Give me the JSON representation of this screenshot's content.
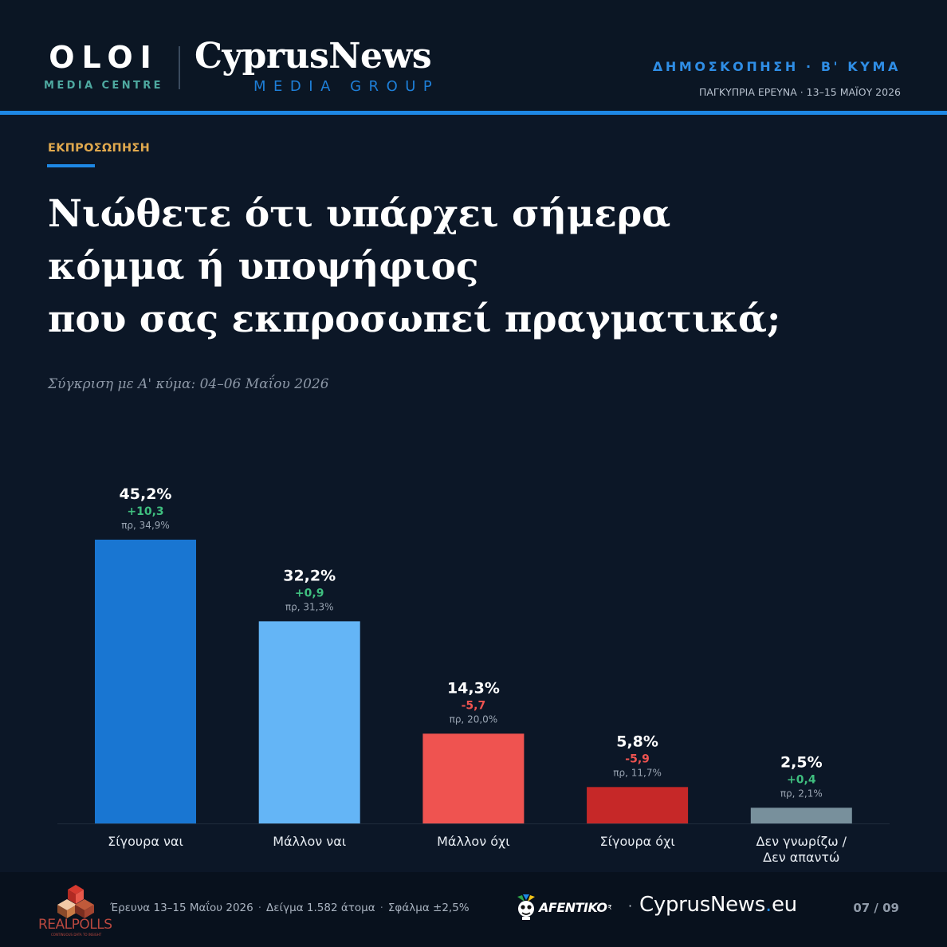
{
  "header": {
    "brand_oloi": "OLOI",
    "brand_oloi_sub": "MEDIA CENTRE",
    "brand_cyprusnews": "CyprusNews",
    "brand_cyprusnews_sub": "MEDIA GROUP",
    "poll_title": "ΔΗΜΟΣΚΟΠΗΣΗ · Β' ΚΥΜΑ",
    "poll_subtitle": "ΠΑΓΚΥΠΡΙΑ ΕΡΕΥΝΑ · 13–15 ΜΑΪΟΥ 2026"
  },
  "section_label": "ΕΚΠΡΟΣΩΠΗΣΗ",
  "question_lines": [
    "Νιώθετε ότι υπάρχει σήμερα",
    "κόμμα ή υποψήφιος",
    "που σας εκπροσωπεί πραγματικά;"
  ],
  "comparison_note": "Σύγκριση με Α' κύμα: 04–06 Μαΐου 2026",
  "chart_data": {
    "type": "bar",
    "title": "Νιώθετε ότι υπάρχει σήμερα κόμμα ή υποψήφιος που σας εκπροσωπεί πραγματικά;",
    "xlabel": "",
    "ylabel": "",
    "unit": "%",
    "ylim": [
      0,
      45.2
    ],
    "grid": false,
    "categories": [
      [
        "Σίγουρα ναι"
      ],
      [
        "Μάλλον ναι"
      ],
      [
        "Μάλλον όχι"
      ],
      [
        "Σίγουρα όχι"
      ],
      [
        "Δεν γνωρίζω /",
        "Δεν απαντώ"
      ]
    ],
    "values": [
      45.2,
      32.2,
      14.3,
      5.8,
      2.5
    ],
    "value_labels": [
      "45,2%",
      "32,2%",
      "14,3%",
      "5,8%",
      "2,5%"
    ],
    "change": [
      10.3,
      0.9,
      -5.7,
      -5.9,
      0.4
    ],
    "change_labels": [
      "+10,3",
      "+0,9",
      "-5,7",
      "-5,9",
      "+0,4"
    ],
    "previous": [
      34.9,
      31.3,
      20.0,
      11.7,
      2.1
    ],
    "previous_labels": [
      "πρ, 34,9%",
      "πρ, 31,3%",
      "πρ, 20,0%",
      "πρ, 11,7%",
      "πρ, 2,1%"
    ],
    "colors": [
      "#1976d2",
      "#64b5f6",
      "#ef5350",
      "#c62828",
      "#78909c"
    ],
    "change_colors": {
      "positive": "#3fbf7f",
      "negative": "#ef5350"
    }
  },
  "footer": {
    "pollster": "REALPOLLS",
    "pollster_tagline": "CONTINUOUS DATA TO INSIGHT",
    "meta": [
      "Έρευνα 13–15 Μαΐου 2026",
      "Δείγμα 1.582 άτομα",
      "Σφάλμα ±2,5%"
    ],
    "partner_afentiko": "AFENTIKO",
    "partner_afentiko_sup": "₹",
    "partner_cyprusnews_a": "CyprusNews",
    "partner_cyprusnews_dot": ".",
    "partner_cyprusnews_b": "eu",
    "page": "07 / 09"
  }
}
